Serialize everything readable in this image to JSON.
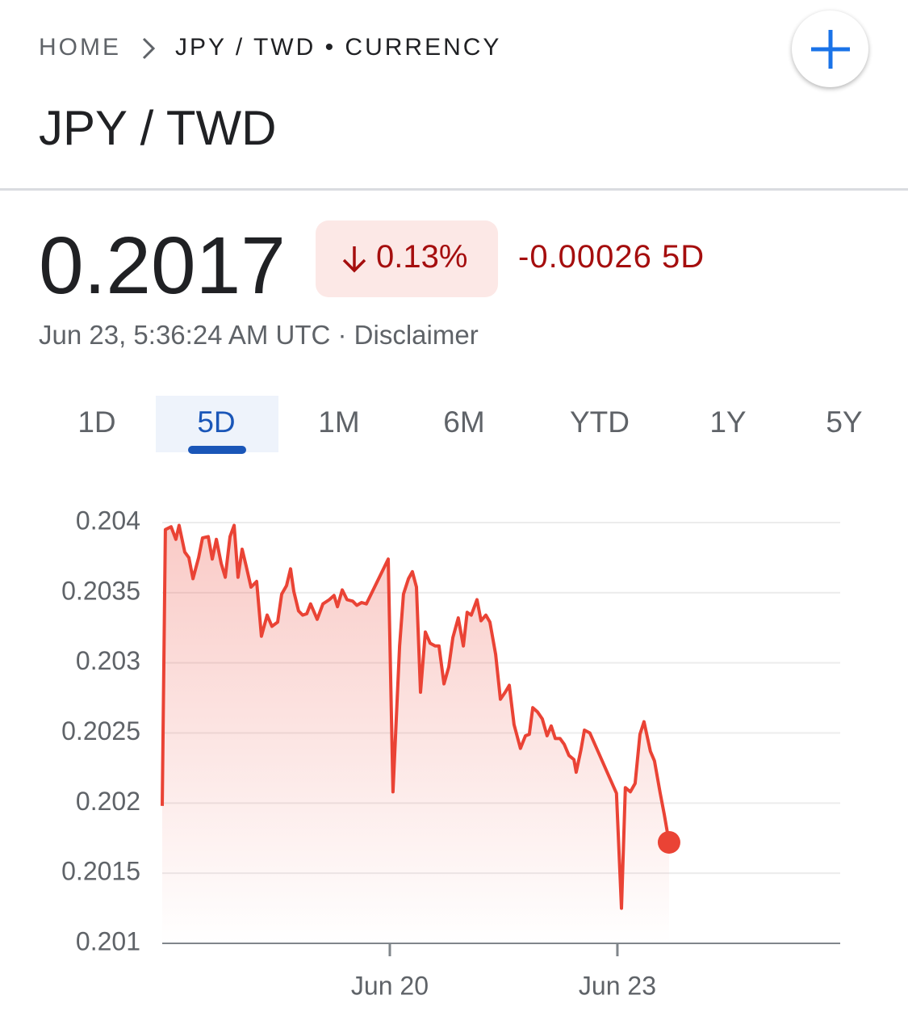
{
  "header": {
    "breadcrumb": [
      "HOME",
      "JPY / TWD • CURRENCY"
    ],
    "title": "JPY / TWD"
  },
  "quote": {
    "price": "0.2017",
    "change_percent": "0.13%",
    "change": "-0.00026 5D",
    "timestamp": "Jun 23, 5:36:24 AM UTC · Disclaimer"
  },
  "tabs": {
    "items": [
      "1D",
      "5D",
      "1M",
      "6M",
      "YTD",
      "1Y",
      "5Y"
    ],
    "selected": 1
  },
  "chart_data": {
    "type": "line",
    "color": "#ea4335",
    "grid": true,
    "x": [
      0,
      0.014,
      0.039,
      0.06,
      0.074,
      0.099,
      0.117,
      0.135,
      0.16,
      0.177,
      0.202,
      0.22,
      0.238,
      0.259,
      0.277,
      0.298,
      0.316,
      0.333,
      0.351,
      0.369,
      0.39,
      0.415,
      0.436,
      0.461,
      0.482,
      0.507,
      0.525,
      0.546,
      0.564,
      0.578,
      0.599,
      0.617,
      0.635,
      0.652,
      0.681,
      0.706,
      0.734,
      0.755,
      0.77,
      0.791,
      0.812,
      0.837,
      0.855,
      0.876,
      0.897,
      0.993,
      1.014,
      1.043,
      1.06,
      1.082,
      1.099,
      1.117,
      1.135,
      1.156,
      1.177,
      1.199,
      1.216,
      1.238,
      1.259,
      1.277,
      1.301,
      1.323,
      1.34,
      1.358,
      1.383,
      1.401,
      1.422,
      1.44,
      1.465,
      1.486,
      1.507,
      1.525,
      1.546,
      1.574,
      1.596,
      1.613,
      1.628,
      1.649,
      1.67,
      1.691,
      1.709,
      1.727,
      1.748,
      1.766,
      1.787,
      1.809,
      1.819,
      1.84,
      1.855,
      1.879,
      1.996,
      2.018,
      2.035,
      2.057,
      2.078,
      2.099,
      2.117,
      2.145,
      2.163,
      2.188,
      2.206,
      2.227
    ],
    "values": [
      0.20198,
      0.20395,
      0.20397,
      0.20388,
      0.20398,
      0.20379,
      0.20375,
      0.2036,
      0.20375,
      0.20389,
      0.2039,
      0.20374,
      0.20388,
      0.20371,
      0.20361,
      0.2039,
      0.20398,
      0.20361,
      0.20381,
      0.20369,
      0.20354,
      0.20358,
      0.20319,
      0.20334,
      0.20326,
      0.20329,
      0.20349,
      0.20355,
      0.20367,
      0.20351,
      0.20337,
      0.20334,
      0.20335,
      0.20342,
      0.20331,
      0.20342,
      0.20345,
      0.20348,
      0.2034,
      0.20352,
      0.20345,
      0.20344,
      0.20341,
      0.20343,
      0.20342,
      0.20374,
      0.20208,
      0.20312,
      0.20349,
      0.2036,
      0.20365,
      0.20354,
      0.20279,
      0.20322,
      0.20314,
      0.20312,
      0.20312,
      0.20285,
      0.20297,
      0.20318,
      0.20332,
      0.20312,
      0.20336,
      0.20334,
      0.20345,
      0.2033,
      0.20334,
      0.20329,
      0.20306,
      0.20274,
      0.20279,
      0.20284,
      0.20256,
      0.20239,
      0.20248,
      0.20249,
      0.20268,
      0.20265,
      0.2026,
      0.20248,
      0.20255,
      0.20246,
      0.20246,
      0.20242,
      0.20234,
      0.20231,
      0.20222,
      0.20238,
      0.20252,
      0.2025,
      0.20207,
      0.20125,
      0.20211,
      0.20208,
      0.20214,
      0.20249,
      0.20258,
      0.20237,
      0.2023,
      0.20207,
      0.20192,
      0.20172
    ],
    "xlim": [
      0,
      2.979
    ],
    "xticks": [
      {
        "value": 1,
        "label": "Jun 20"
      },
      {
        "value": 2,
        "label": "Jun 23"
      }
    ],
    "ylim": [
      0.201,
      0.204
    ],
    "yticks": [
      0.201,
      0.2015,
      0.202,
      0.2025,
      0.203,
      0.2035,
      0.204
    ]
  }
}
